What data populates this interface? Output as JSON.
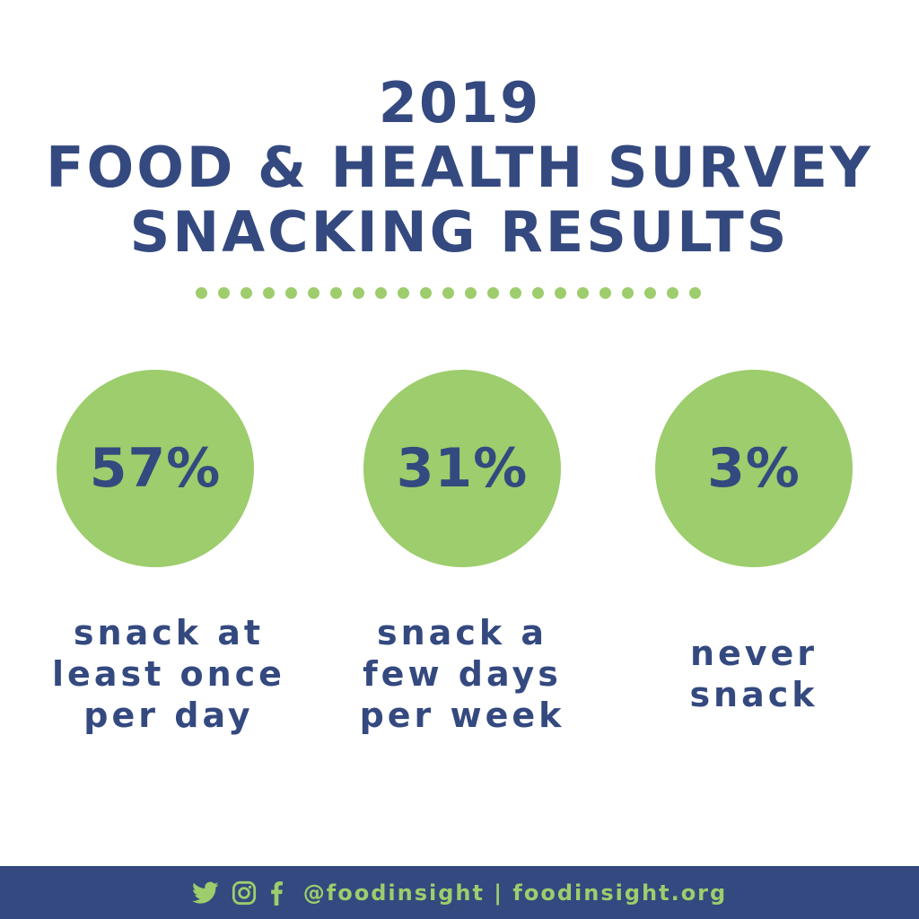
{
  "header": {
    "line1": "2019",
    "line2": "FOOD & HEALTH SURVEY",
    "line3": "SNACKING RESULTS"
  },
  "stats": [
    {
      "value": "57%",
      "caption": [
        "snack at",
        "least once",
        "per day"
      ]
    },
    {
      "value": "31%",
      "caption": [
        "snack a",
        "few days",
        "per week"
      ]
    },
    {
      "value": "3%",
      "caption": [
        "never",
        "snack"
      ]
    }
  ],
  "footer": {
    "icons": [
      "twitter-icon",
      "instagram-icon",
      "facebook-icon"
    ],
    "handle_text": "@foodinsight | foodinsight.org"
  },
  "colors": {
    "navy": "#34497f",
    "green": "#9dcd6c",
    "background": "#ffffff"
  }
}
